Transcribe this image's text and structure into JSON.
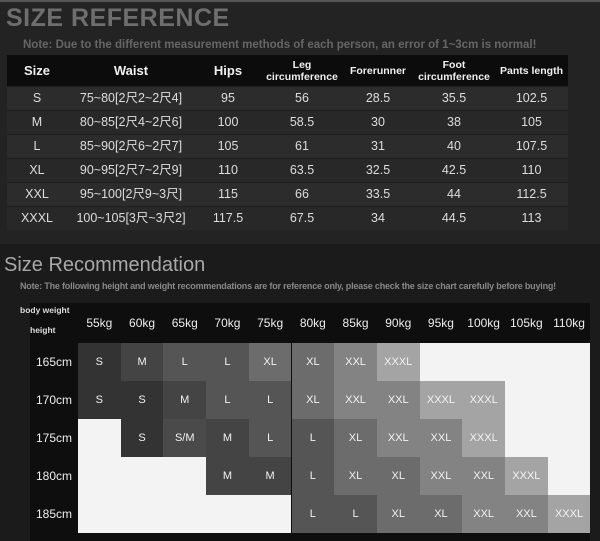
{
  "size_reference": {
    "title": "SIZE REFERENCE",
    "note": "Note: Due to the different measurement methods of each person, an error of 1~3cm is normal!",
    "headers": [
      "Size",
      "Waist",
      "Hips",
      "Leg circumference",
      "Forerunner",
      "Foot circumference",
      "Pants length"
    ],
    "rows": [
      [
        "S",
        "75~80[2尺2~2尺4]",
        "95",
        "56",
        "28.5",
        "35.5",
        "102.5"
      ],
      [
        "M",
        "80~85[2尺4~2尺6]",
        "100",
        "58.5",
        "30",
        "38",
        "105"
      ],
      [
        "L",
        "85~90[2尺6~2尺7]",
        "105",
        "61",
        "31",
        "40",
        "107.5"
      ],
      [
        "XL",
        "90~95[2尺7~2尺9]",
        "110",
        "63.5",
        "32.5",
        "42.5",
        "110"
      ],
      [
        "XXL",
        "95~100[2尺9~3尺]",
        "115",
        "66",
        "33.5",
        "44",
        "112.5"
      ],
      [
        "XXXL",
        "100~105[3尺~3尺2]",
        "117.5",
        "67.5",
        "34",
        "44.5",
        "113"
      ]
    ]
  },
  "size_recommendation": {
    "title": "Size Recommendation",
    "note": "Note: The following height and weight recommendations are for reference only, please check the size chart carefully before buying!",
    "corner_weight_label": "body weight",
    "corner_height_label": "height",
    "weights": [
      "55kg",
      "60kg",
      "65kg",
      "70kg",
      "75kg",
      "80kg",
      "85kg",
      "90kg",
      "95kg",
      "100kg",
      "105kg",
      "110kg"
    ],
    "heights": [
      "165cm",
      "170cm",
      "175cm",
      "180cm",
      "185cm"
    ],
    "cells": [
      [
        "S",
        "M",
        "L",
        "L",
        "XL",
        "XL",
        "XXL",
        "XXXL",
        "",
        "",
        "",
        ""
      ],
      [
        "S",
        "S",
        "M",
        "L",
        "L",
        "XL",
        "XXL",
        "XXL",
        "XXXL",
        "XXXL",
        "",
        ""
      ],
      [
        "",
        "S",
        "S/M",
        "M",
        "L",
        "L",
        "XL",
        "XXL",
        "XXL",
        "XXXL",
        "",
        ""
      ],
      [
        "",
        "",
        "",
        "M",
        "M",
        "L",
        "XL",
        "XL",
        "XXL",
        "XXL",
        "XXXL",
        ""
      ],
      [
        "",
        "",
        "",
        "",
        "",
        "L",
        "L",
        "XL",
        "XL",
        "XXL",
        "XXL",
        "XXXL"
      ]
    ],
    "colors": {
      "S": "#333333",
      "M": "#444444",
      "S/M": "#4a4a4a",
      "L": "#555555",
      "XL": "#6c6c6c",
      "XXL": "#838383",
      "XXXL": "#a4a4a4",
      "empty": "#f3f3f3"
    }
  }
}
